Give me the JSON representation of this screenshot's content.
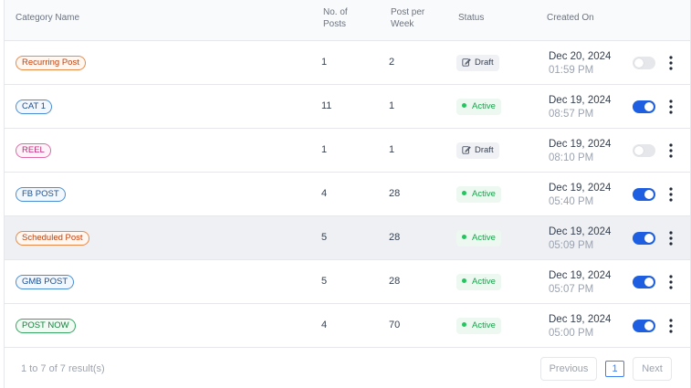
{
  "table": {
    "headers": {
      "category_name": "Category Name",
      "no_of_posts": "No. of Posts",
      "post_per_week": "Post per Week",
      "status": "Status",
      "created_on": "Created On"
    },
    "rows": [
      {
        "category": "Recurring Post",
        "tag_color": "orange",
        "posts": "1",
        "per_week": "2",
        "status": "Draft",
        "date": "Dec 20, 2024",
        "time": "01:59 PM",
        "enabled": false
      },
      {
        "category": "CAT 1",
        "tag_color": "blue",
        "posts": "11",
        "per_week": "1",
        "status": "Active",
        "date": "Dec 19, 2024",
        "time": "08:57 PM",
        "enabled": true
      },
      {
        "category": "REEL",
        "tag_color": "pink",
        "posts": "1",
        "per_week": "1",
        "status": "Draft",
        "date": "Dec 19, 2024",
        "time": "08:10 PM",
        "enabled": false
      },
      {
        "category": "FB POST",
        "tag_color": "blue",
        "posts": "4",
        "per_week": "28",
        "status": "Active",
        "date": "Dec 19, 2024",
        "time": "05:40 PM",
        "enabled": true
      },
      {
        "category": "Scheduled Post",
        "tag_color": "orange",
        "posts": "5",
        "per_week": "28",
        "status": "Active",
        "date": "Dec 19, 2024",
        "time": "05:09 PM",
        "enabled": true
      },
      {
        "category": "GMB POST",
        "tag_color": "blue",
        "posts": "5",
        "per_week": "28",
        "status": "Active",
        "date": "Dec 19, 2024",
        "time": "05:07 PM",
        "enabled": true
      },
      {
        "category": "POST NOW",
        "tag_color": "green",
        "posts": "4",
        "per_week": "70",
        "status": "Active",
        "date": "Dec 19, 2024",
        "time": "05:00 PM",
        "enabled": true
      }
    ]
  },
  "footer": {
    "result_text": "1 to 7 of 7 result(s)",
    "previous_label": "Previous",
    "current_page": "1",
    "next_label": "Next"
  },
  "icons": {
    "draft": "edit-icon",
    "active": "status-dot-icon",
    "row_menu": "kebab-menu-icon"
  },
  "colors": {
    "toggle_on": "#1d5fe0",
    "toggle_off": "#e5e7eb",
    "active_status": "#16a34a",
    "page_accent": "#3b82f6"
  }
}
